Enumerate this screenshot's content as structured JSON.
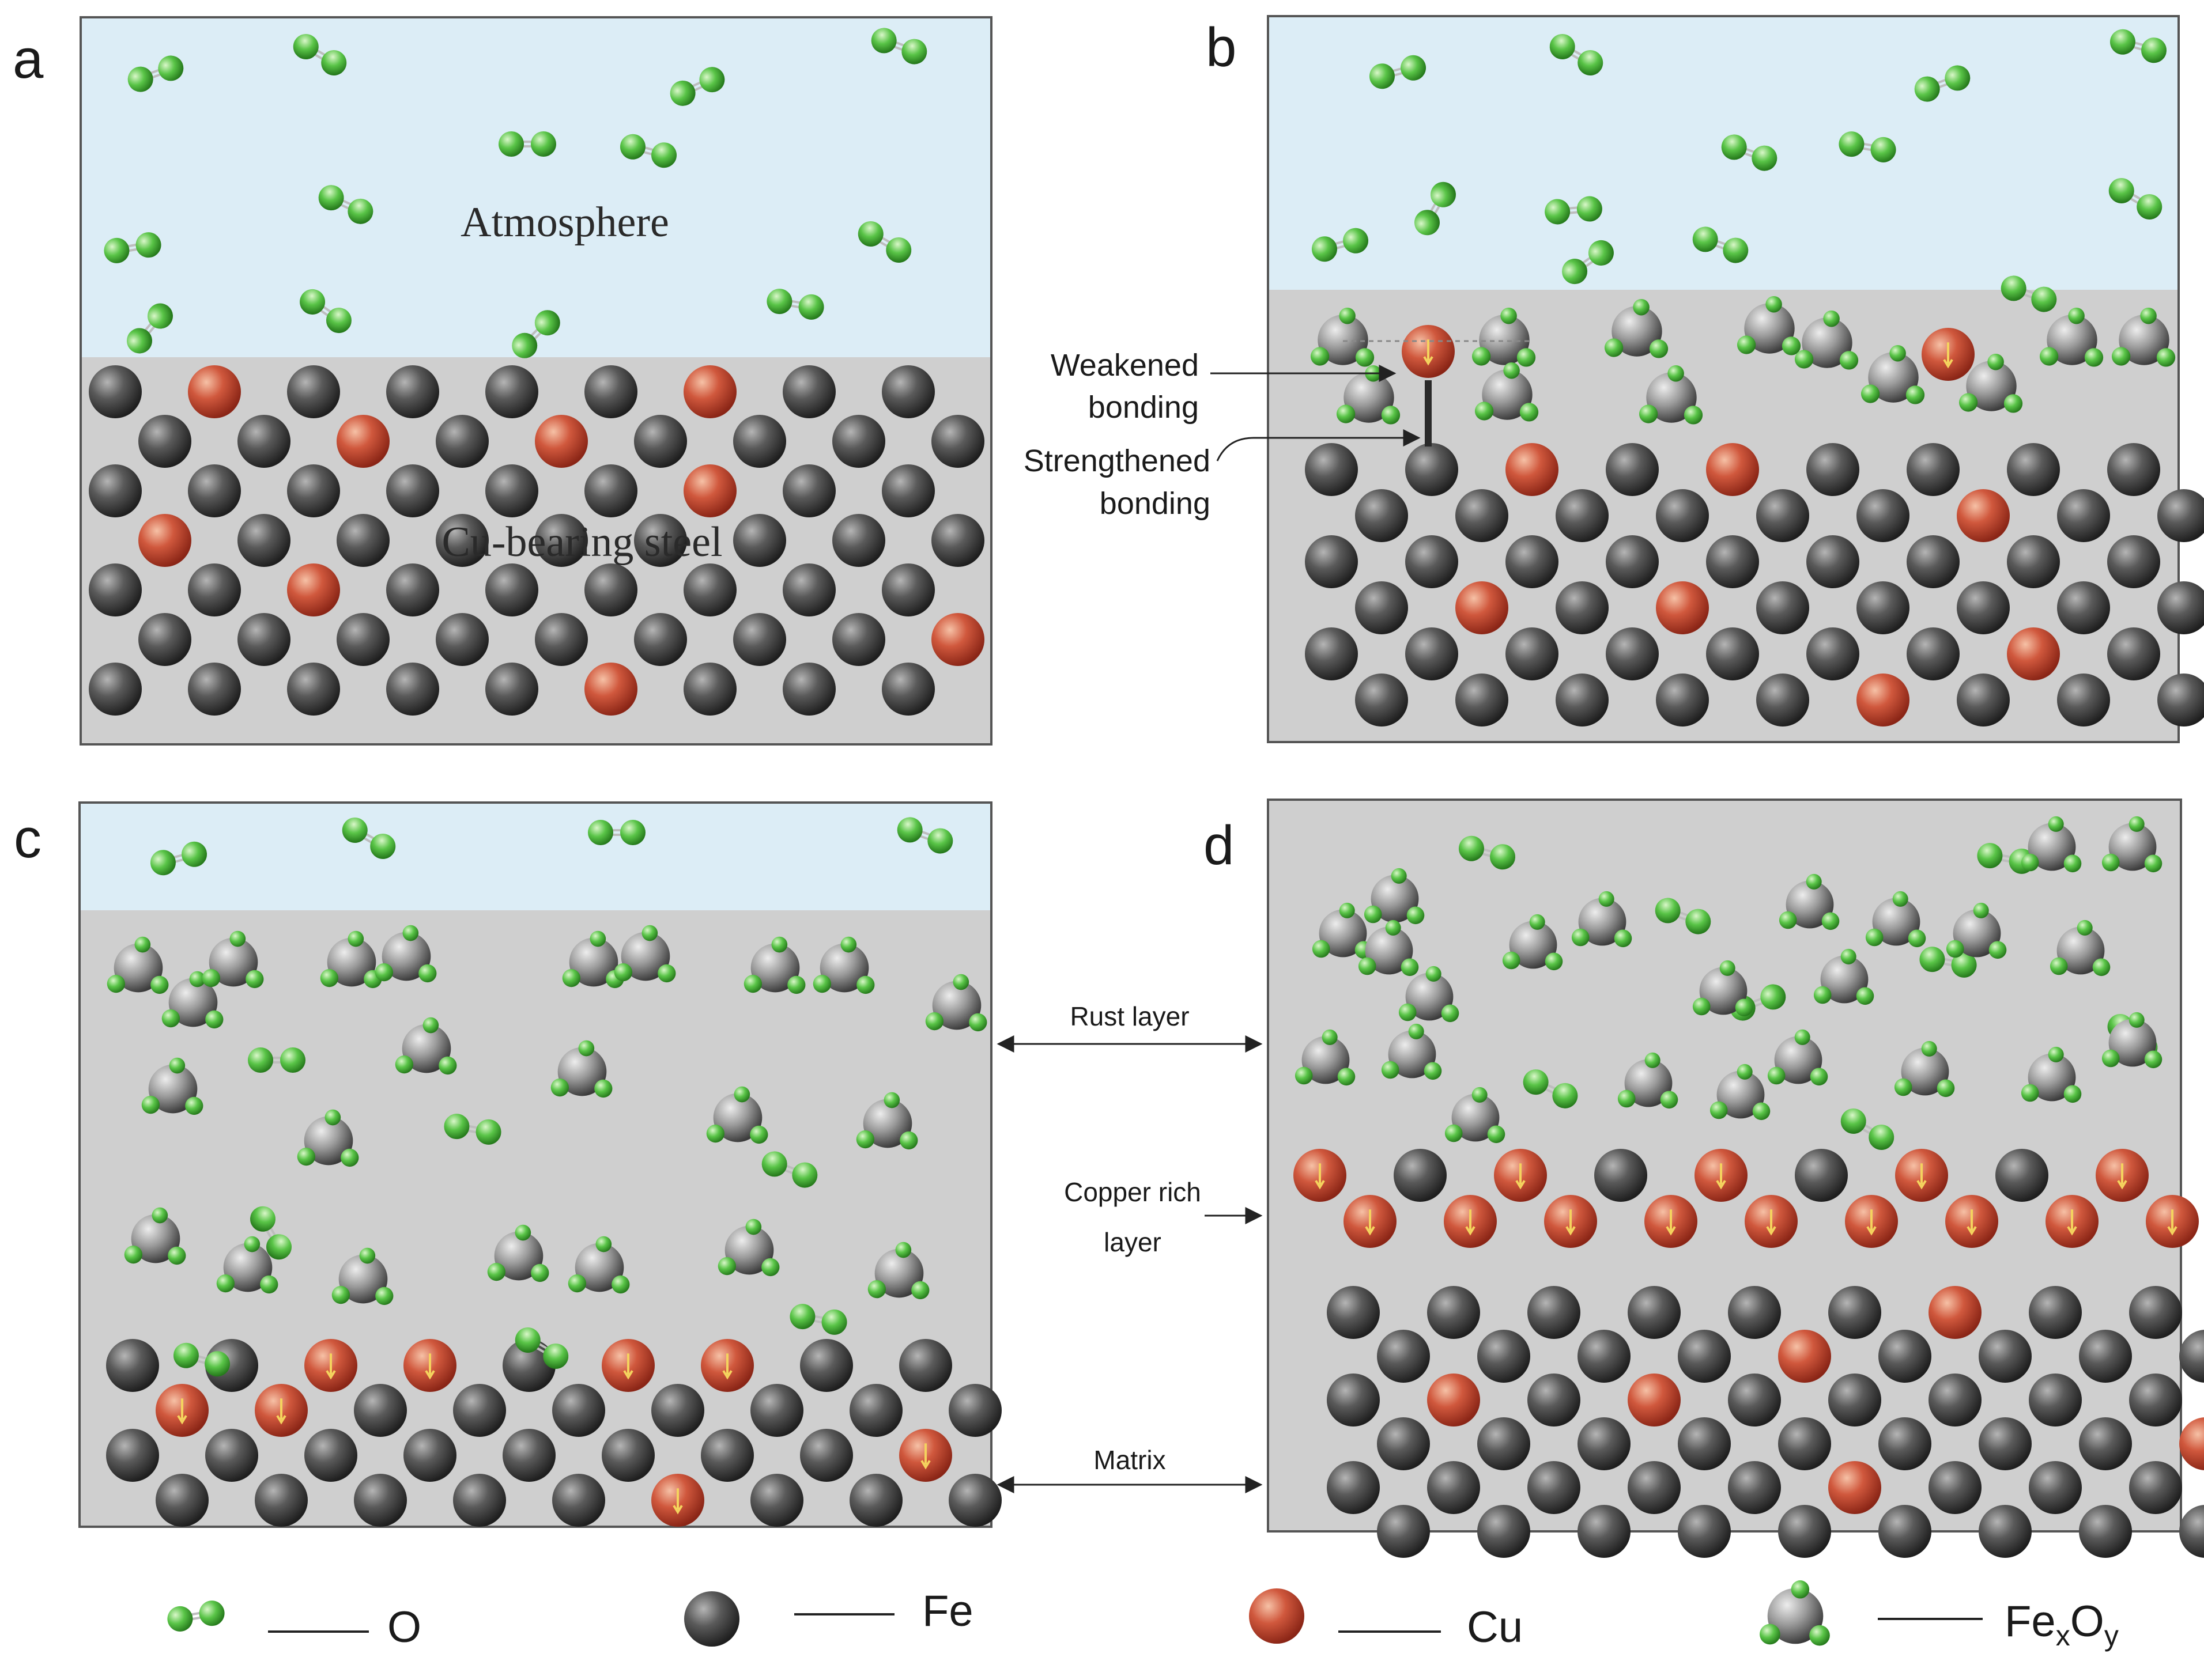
{
  "panels": [
    {
      "letter": "a",
      "top_label": "Atmosphere",
      "bottom_label": "Cu-bearing steel"
    },
    {
      "letter": "b"
    },
    {
      "letter": "c"
    },
    {
      "letter": "d"
    }
  ],
  "annotations": {
    "weakened": [
      "Weakened",
      "bonding"
    ],
    "strengthened": [
      "Strengthened",
      "bonding"
    ],
    "rust_layer": "Rust layer",
    "copper_rich": [
      "Copper rich",
      "layer"
    ],
    "matrix": "Matrix"
  },
  "legend": [
    {
      "label": "O",
      "icon": "oxygen-molecule-icon"
    },
    {
      "label": "Fe",
      "icon": "iron-atom-icon"
    },
    {
      "label": "Cu",
      "icon": "copper-atom-icon"
    },
    {
      "label_main": "Fe",
      "label_sub1": "x",
      "label_mid": "O",
      "label_sub2": "y",
      "icon": "iron-oxide-icon"
    }
  ],
  "colors": {
    "atmosphere": "#dcedf6",
    "steel": "#cfcfcf",
    "fe": "#4a4a4a",
    "cu": "#c9503a",
    "oxygen": "#5cc34a",
    "rust_core": "#8d8d8d"
  }
}
